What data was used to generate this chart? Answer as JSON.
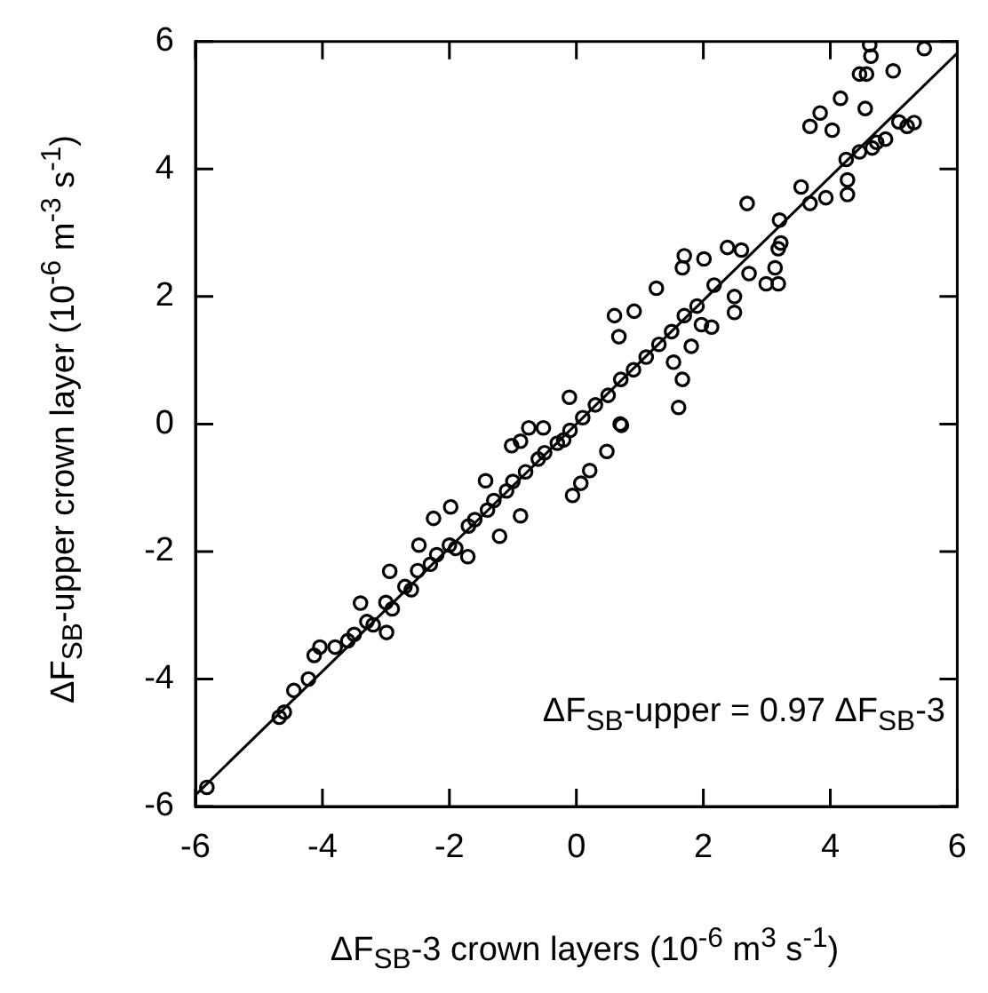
{
  "chart_data": {
    "type": "scatter",
    "xlabel": "ΔF$_{SB}$-3 crown layers (10$^{-6}$ m$^{3}$ s$^{-1}$)",
    "ylabel": "ΔF$_{SB}$-upper crown layer (10$^{-6}$ m$^{-3}$ s$^{-1}$)",
    "annotations": [
      "ΔF$_{SB}$-upper = 0.97 ΔF$_{SB}$-3"
    ],
    "xlim": [
      -6,
      6
    ],
    "ylim": [
      -6,
      6
    ],
    "xticks": [
      -6,
      -4,
      -2,
      0,
      2,
      4,
      6
    ],
    "yticks": [
      -6,
      -4,
      -2,
      0,
      2,
      4,
      6
    ],
    "grid": false,
    "legend": false,
    "marker": "circle",
    "series": [
      {
        "color": "#000000",
        "x": [
          4.62,
          4.64,
          5.48,
          4.46,
          4.57,
          4.99,
          4.16,
          4.55,
          3.84,
          3.68,
          4.03,
          5.08,
          5.21,
          5.32,
          4.73,
          4.87,
          4.66,
          4.46,
          4.25,
          4.27,
          4.27,
          3.54,
          3.93,
          3.68,
          2.69,
          3.2,
          3.22,
          3.18,
          2.38,
          2.6,
          1.7,
          2.01,
          1.67,
          3.13,
          2.99,
          3.18,
          2.72,
          1.26,
          2.17,
          2.49,
          0.6,
          0.91,
          2.49,
          0.67,
          1.97,
          2.13,
          1.81,
          1.53,
          1.67,
          1.61,
          0.71,
          -0.11,
          -0.75,
          -0.52,
          0.69,
          0.48,
          0.21,
          0.07,
          -0.06,
          -0.88,
          -1.21,
          -2.25,
          -1.98,
          -1.43,
          -1.02,
          -0.88,
          -2.48,
          -2.99,
          -4.04,
          -4.13,
          -4.45,
          -4.22,
          -4.68,
          -4.6,
          -5.82,
          -1.71,
          -3.4,
          -2.94,
          -0.2,
          -3.8,
          -3.6,
          -3.5,
          -3.3,
          -3.2,
          -3.0,
          -2.9,
          -2.7,
          -2.6,
          -2.5,
          -2.3,
          -2.2,
          -2.0,
          -1.9,
          -1.7,
          -1.6,
          -1.4,
          -1.3,
          -1.1,
          -1.0,
          -0.8,
          -0.6,
          -0.5,
          -0.3,
          -0.1,
          0.1,
          0.3,
          0.5,
          0.7,
          0.9,
          1.1,
          1.3,
          1.5,
          1.7,
          1.9
        ],
        "values": [
          5.95,
          5.77,
          5.89,
          5.49,
          5.49,
          5.54,
          5.11,
          4.95,
          4.88,
          4.67,
          4.61,
          4.74,
          4.67,
          4.73,
          4.42,
          4.47,
          4.33,
          4.27,
          4.15,
          3.83,
          3.6,
          3.72,
          3.55,
          3.46,
          3.46,
          3.2,
          2.84,
          2.75,
          2.77,
          2.73,
          2.64,
          2.59,
          2.45,
          2.45,
          2.2,
          2.2,
          2.36,
          2.13,
          2.18,
          2.0,
          1.7,
          1.77,
          1.75,
          1.37,
          1.56,
          1.52,
          1.22,
          0.97,
          0.7,
          0.26,
          -0.02,
          0.42,
          -0.06,
          -0.06,
          0.0,
          -0.43,
          -0.73,
          -0.93,
          -1.12,
          -1.44,
          -1.76,
          -1.48,
          -1.3,
          -0.89,
          -0.34,
          -0.27,
          -1.9,
          -3.27,
          -3.5,
          -3.63,
          -4.18,
          -4.0,
          -4.6,
          -4.52,
          -5.7,
          -2.08,
          -2.81,
          -2.31,
          -0.25,
          -3.5,
          -3.4,
          -3.3,
          -3.1,
          -3.15,
          -2.8,
          -2.9,
          -2.55,
          -2.6,
          -2.3,
          -2.2,
          -2.05,
          -1.9,
          -1.95,
          -1.6,
          -1.5,
          -1.35,
          -1.2,
          -1.05,
          -0.9,
          -0.75,
          -0.55,
          -0.45,
          -0.3,
          -0.1,
          0.1,
          0.3,
          0.45,
          0.7,
          0.85,
          1.05,
          1.25,
          1.45,
          1.7,
          1.85
        ]
      },
      {
        "type": "line",
        "color": "#000000",
        "marker": "none",
        "x": [
          -6,
          6
        ],
        "values": [
          -5.82,
          5.82
        ]
      }
    ]
  }
}
